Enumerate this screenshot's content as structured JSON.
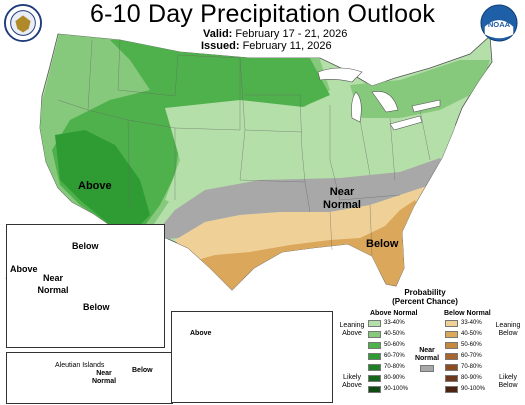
{
  "header": {
    "title": "6-10 Day Precipitation Outlook",
    "valid_label": "Valid:",
    "valid_value": "February 17 - 21, 2026",
    "issued_label": "Issued:",
    "issued_value": "February 11, 2026"
  },
  "logos": {
    "left": "us-department-of-commerce-seal",
    "right": "noaa-logo",
    "right_text": "NOAA"
  },
  "map_labels": {
    "conus_above": "Above",
    "conus_near": "Near",
    "conus_normal": "Normal",
    "conus_below": "Below",
    "ak_above": "Above",
    "ak_below_north": "Below",
    "ak_near": "Near",
    "ak_normal": "Normal",
    "ak_below_south": "Below",
    "aleutian_title": "Aleutian Islands",
    "aleutian_near": "Near",
    "aleutian_normal": "Normal",
    "aleutian_below": "Below",
    "hi_above": "Above"
  },
  "colors": {
    "above_33_40": "#b4dfa9",
    "above_40_50": "#86c97c",
    "above_50_60": "#4fb14b",
    "above_60_70": "#2f9b33",
    "above_70_80": "#1f7f26",
    "above_80_90": "#17651c",
    "above_90_100": "#0f4a13",
    "below_33_40": "#efd197",
    "below_40_50": "#dba75a",
    "below_50_60": "#c6883c",
    "below_60_70": "#a8652d",
    "below_70_80": "#8c4c22",
    "below_80_90": "#6e381a",
    "below_90_100": "#4a2410",
    "near_normal": "#a8a8a8"
  },
  "legend": {
    "title_line1": "Probability",
    "title_line2": "(Percent Chance)",
    "above_header": "Above Normal",
    "below_header": "Below Normal",
    "near_line1": "Near",
    "near_line2": "Normal",
    "leaning_above_1": "Leaning",
    "leaning_above_2": "Above",
    "likely_above_1": "Likely",
    "likely_above_2": "Above",
    "leaning_below_1": "Leaning",
    "leaning_below_2": "Below",
    "likely_below_1": "Likely",
    "likely_below_2": "Below",
    "ranges": [
      "33-40%",
      "40-50%",
      "50-60%",
      "60-70%",
      "70-80%",
      "80-90%",
      "90-100%"
    ]
  }
}
